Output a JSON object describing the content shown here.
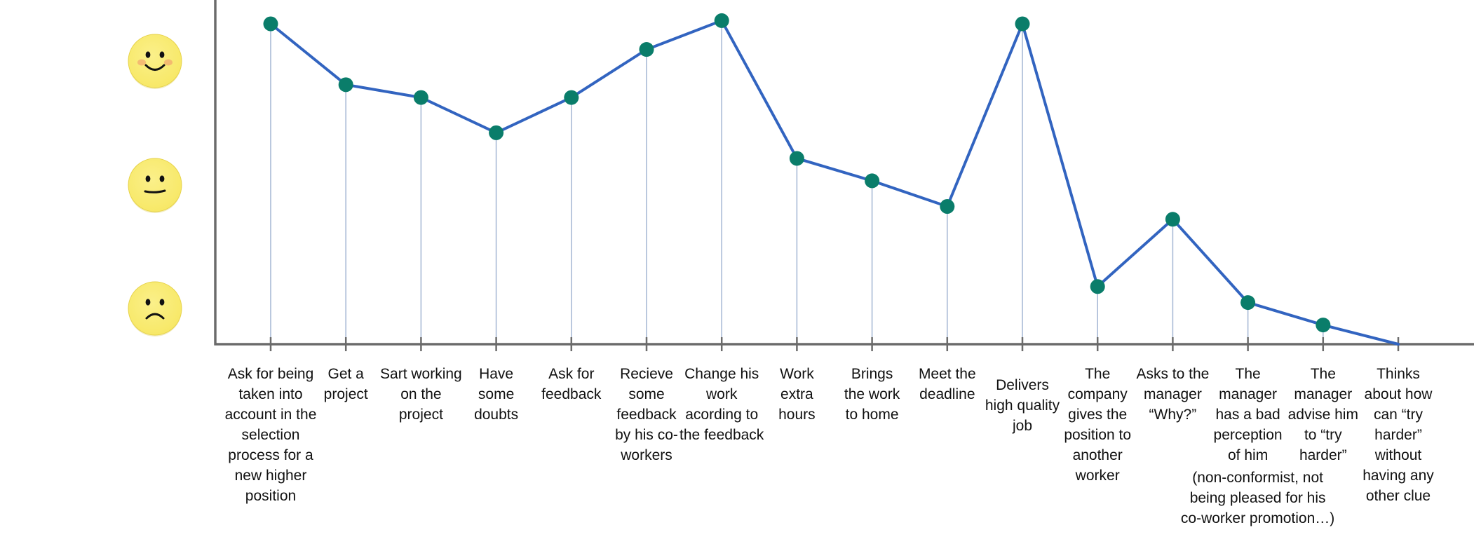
{
  "chart_data": {
    "type": "line",
    "title": "",
    "xlabel": "",
    "ylabel": "",
    "y_scale_icons": [
      "happy-face",
      "neutral-face",
      "sad-face"
    ],
    "ylim": [
      0,
      10
    ],
    "grid": false,
    "legend": "none",
    "categories": [
      "Ask for being taken into account in the selection process for a new higher position",
      "Get a project",
      "Sart working on the project",
      "Have some doubts",
      "Ask for feedback",
      "Recieve some feedback by his co-workers",
      "Change his work acording to the feedback",
      "Work extra hours",
      "Brings the work to home",
      "Meet the deadline",
      "Delivers high quality job",
      "The company gives the position to another worker",
      "Asks to the manager “Why?”",
      "The manager has a bad perception of him",
      "The manager advise him to “try harder”",
      "Thinks about how can “try harder” without having any other clue"
    ],
    "series": [
      {
        "values": [
          10.0,
          8.1,
          7.7,
          6.6,
          7.7,
          9.2,
          10.1,
          5.8,
          5.1,
          4.3,
          10.0,
          1.8,
          3.9,
          1.3,
          0.6,
          0.0
        ]
      }
    ],
    "notes": [
      {
        "category_index": 13,
        "text": "(non-conformist, not being pleased for his co-worker promotion…)"
      }
    ],
    "colors": {
      "line": "#3264c0",
      "marker": "#0a7d6a",
      "axis": "#6b6b6b",
      "drop_line": "#a9bad6",
      "face_fill": "#f7e867",
      "face_edge": "#e6d24a",
      "blush": "#f08a6a"
    }
  }
}
